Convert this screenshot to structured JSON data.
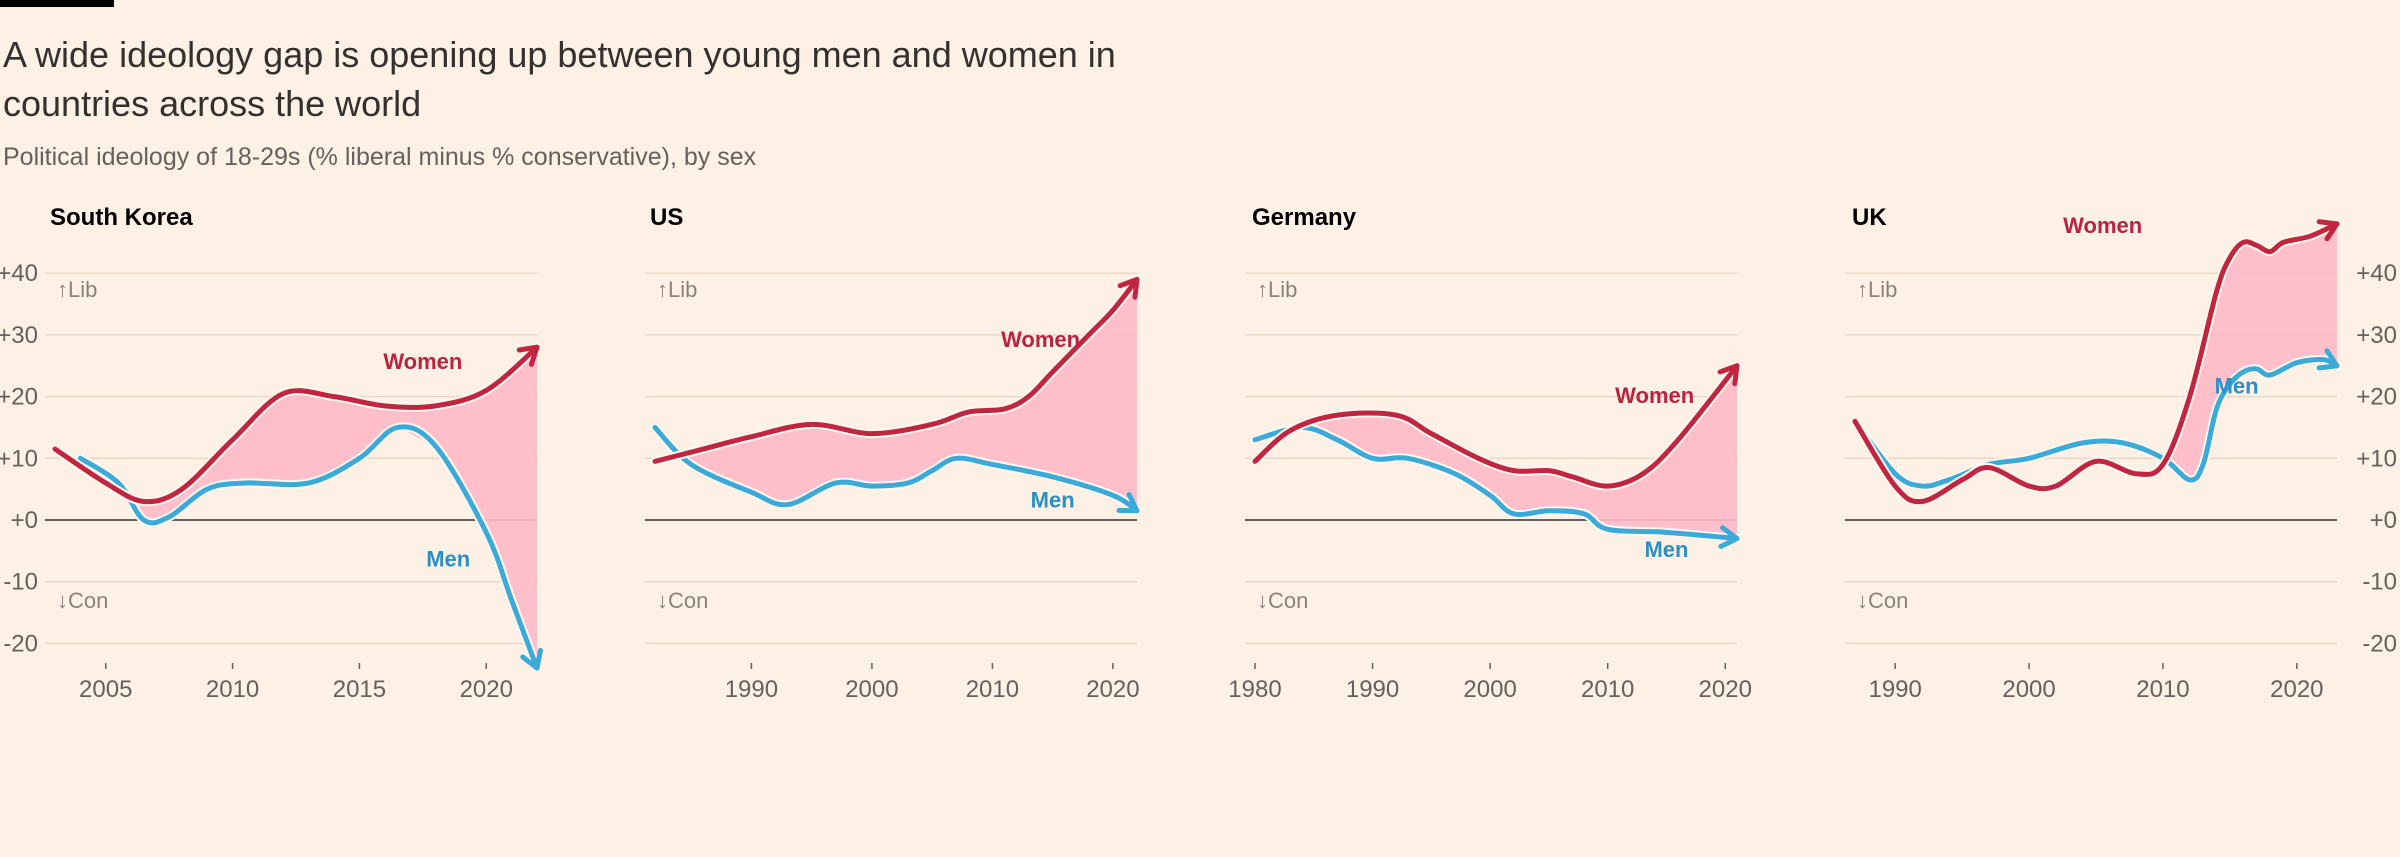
{
  "header": {
    "title": "A wide ideology gap is opening up between young men and women in countries across the world",
    "subtitle": "Political ideology of 18-29s (% liberal minus % conservative), by sex"
  },
  "colors": {
    "women": "#C0263F",
    "men": "#3BAAD9",
    "gap_fill": "#FFB9C6",
    "zero_line": "#66605C",
    "grid": "#EBD6C8"
  },
  "annotations": {
    "lib": "↑Lib",
    "con": "↓Con"
  },
  "chart_data": [
    {
      "type": "line",
      "title": "South Korea",
      "xlim": [
        2003,
        2022
      ],
      "ylim": [
        -20,
        40
      ],
      "yticks": [
        40,
        30,
        20,
        10,
        0,
        -10,
        -20
      ],
      "ytick_labels": [
        "+40",
        "+30",
        "+20",
        "+10",
        "+0",
        "-10",
        "-20"
      ],
      "ytick_side": "left",
      "xticks": [
        2005,
        2010,
        2015,
        2020
      ],
      "grid": true,
      "series": [
        {
          "name": "Women",
          "x": [
            2003,
            2005,
            2006.5,
            2008,
            2010,
            2012,
            2014,
            2016,
            2018,
            2020,
            2022
          ],
          "y": [
            11.5,
            6,
            3,
            5,
            13,
            20.5,
            20,
            18.5,
            18.5,
            21,
            28
          ]
        },
        {
          "name": "Men",
          "x": [
            2004,
            2005.5,
            2006.5,
            2007.5,
            2009,
            2010.5,
            2013,
            2015,
            2016.5,
            2018,
            2020,
            2021,
            2022
          ],
          "y": [
            10,
            6,
            0,
            0.5,
            5,
            6,
            6,
            10,
            15,
            12,
            -2,
            -13,
            -24
          ]
        }
      ],
      "labels": {
        "women": {
          "text": "Women",
          "x": 2017.5,
          "y": 24.5
        },
        "men": {
          "text": "Men",
          "x": 2018.5,
          "y": -7.5
        }
      }
    },
    {
      "type": "line",
      "title": "US",
      "xlim": [
        1982,
        2022
      ],
      "ylim": [
        -20,
        40
      ],
      "yticks": [
        40,
        30,
        20,
        10,
        0,
        -10,
        -20
      ],
      "ytick_labels": [],
      "ytick_side": "none",
      "xticks": [
        1990,
        2000,
        2010,
        2020
      ],
      "grid": true,
      "series": [
        {
          "name": "Women",
          "x": [
            1982,
            1986,
            1990,
            1995,
            2000,
            2005,
            2008,
            2011,
            2013,
            2015,
            2018,
            2020,
            2022
          ],
          "y": [
            9.5,
            11.5,
            13.5,
            15.5,
            14,
            15.5,
            17.5,
            18,
            20,
            24,
            30,
            34,
            39
          ]
        },
        {
          "name": "Men",
          "x": [
            1982,
            1985,
            1990,
            1993,
            1997,
            2000,
            2003,
            2005,
            2007,
            2010,
            2015,
            2020,
            2022
          ],
          "y": [
            15,
            9,
            4.5,
            2.5,
            6,
            5.5,
            6,
            8,
            10,
            9,
            7,
            4,
            1.5
          ]
        }
      ],
      "labels": {
        "women": {
          "text": "Women",
          "x": 2014,
          "y": 28
        },
        "men": {
          "text": "Men",
          "x": 2015,
          "y": 2
        }
      }
    },
    {
      "type": "line",
      "title": "Germany",
      "xlim": [
        1980,
        2021
      ],
      "ylim": [
        -20,
        40
      ],
      "yticks": [
        40,
        30,
        20,
        10,
        0,
        -10,
        -20
      ],
      "ytick_labels": [],
      "ytick_side": "none",
      "xticks": [
        1980,
        1990,
        2000,
        2010,
        2020
      ],
      "grid": true,
      "series": [
        {
          "name": "Women",
          "x": [
            1980,
            1983,
            1987,
            1992,
            1995,
            1999,
            2002,
            2005,
            2007,
            2010,
            2013,
            2016,
            2021
          ],
          "y": [
            9.5,
            14.5,
            17,
            17,
            14,
            10,
            8,
            8,
            7,
            5.5,
            7.5,
            13,
            25
          ]
        },
        {
          "name": "Men",
          "x": [
            1980,
            1984,
            1987,
            1990,
            1993,
            1997,
            2000,
            2002,
            2005,
            2008,
            2010,
            2015,
            2021
          ],
          "y": [
            13,
            15,
            13,
            10,
            10,
            7.5,
            4,
            1,
            1.5,
            1,
            -1.5,
            -2,
            -3
          ]
        }
      ],
      "labels": {
        "women": {
          "text": "Women",
          "x": 2014,
          "y": 19
        },
        "men": {
          "text": "Men",
          "x": 2015,
          "y": -6
        }
      }
    },
    {
      "type": "line",
      "title": "UK",
      "xlim": [
        1987,
        2023
      ],
      "ylim": [
        -20,
        40
      ],
      "yticks": [
        40,
        30,
        20,
        10,
        0,
        -10,
        -20
      ],
      "ytick_labels": [
        "+40",
        "+30",
        "+20",
        "+10",
        "+0",
        "-10",
        "-20"
      ],
      "ytick_side": "right",
      "xticks": [
        1990,
        2000,
        2010,
        2020
      ],
      "grid": true,
      "series": [
        {
          "name": "Women",
          "x": [
            1987,
            1990,
            1992,
            1995,
            1997,
            2000,
            2002,
            2005,
            2008,
            2010,
            2012,
            2014,
            2015,
            2016,
            2017,
            2018,
            2019,
            2021,
            2023
          ],
          "y": [
            16,
            5.5,
            3,
            6.5,
            8.5,
            5.5,
            5.5,
            9.5,
            7.5,
            9,
            20,
            37,
            42.5,
            45,
            44.5,
            43.5,
            45,
            46,
            48
          ]
        },
        {
          "name": "Men",
          "x": [
            1987,
            1990,
            1992,
            1994,
            1997,
            2000,
            2004,
            2007,
            2010,
            2012,
            2013,
            2014,
            2015,
            2016,
            2017,
            2018,
            2020,
            2022,
            2023
          ],
          "y": [
            16,
            7.5,
            5.5,
            6.5,
            9,
            10,
            12.5,
            12.5,
            10,
            6.5,
            9,
            18,
            22,
            24,
            24.5,
            23.5,
            25.5,
            26,
            25
          ]
        }
      ],
      "labels": {
        "women": {
          "text": "Women",
          "x": 2005.5,
          "y": 46.5
        },
        "men": {
          "text": "Men",
          "x": 2015.5,
          "y": 20.5
        }
      }
    }
  ]
}
